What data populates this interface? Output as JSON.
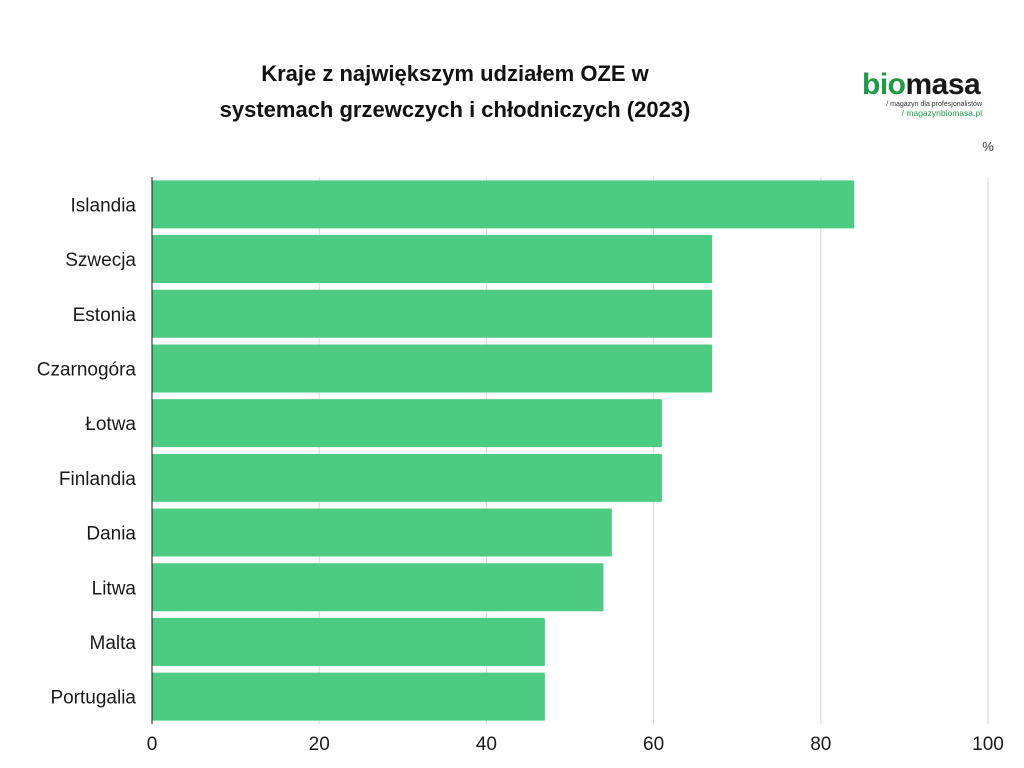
{
  "title_lines": [
    "Kraje z największym udziałem OZE w",
    "systemach grzewczych i chłodniczych (2023)"
  ],
  "logo": {
    "word_green": "bio",
    "word_dark": "masa",
    "tagline": "/ magazyn dla profesjonalistów",
    "url": "/ magazynbiomasa.pl"
  },
  "chart_data": {
    "type": "bar",
    "orientation": "horizontal",
    "categories": [
      "Islandia",
      "Szwecja",
      "Estonia",
      "Czarnogóra",
      "Łotwa",
      "Finlandia",
      "Dania",
      "Litwa",
      "Malta",
      "Portugalia"
    ],
    "values": [
      84,
      67,
      67,
      67,
      61,
      61,
      55,
      54,
      47,
      47
    ],
    "unit": "%",
    "xlim": [
      0,
      100
    ],
    "xticks": [
      0,
      20,
      40,
      60,
      80,
      100
    ],
    "grid": true,
    "bar_color": "#4ecb82"
  }
}
